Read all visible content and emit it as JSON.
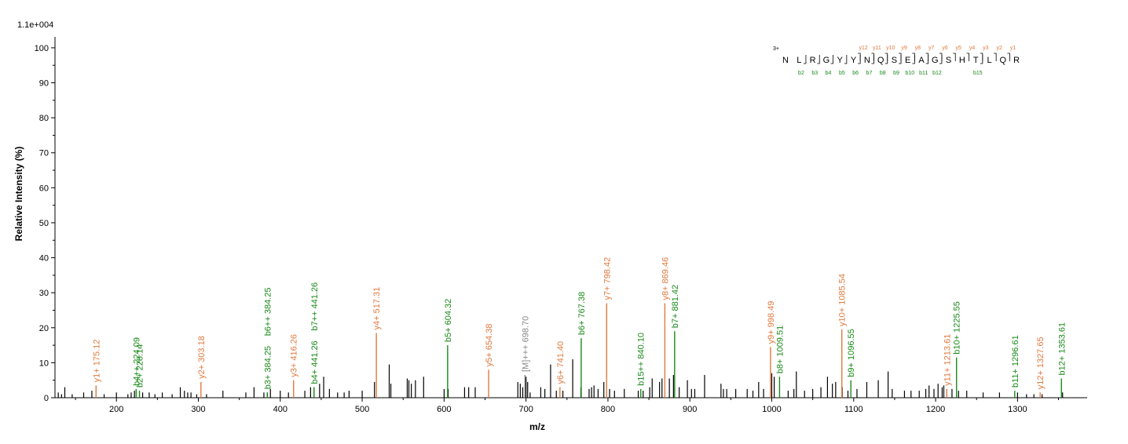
{
  "chart_data": {
    "type": "bar",
    "ylabel": "Relative   Intensity (%)",
    "xlabel": "m/z",
    "scale_label": "1.1e+004",
    "xlim": [
      125,
      1385
    ],
    "ylim": [
      0,
      102
    ],
    "xticks": [
      200,
      300,
      400,
      500,
      600,
      700,
      800,
      900,
      1000,
      1100,
      1200,
      1300
    ],
    "yticks": [
      0,
      10,
      20,
      30,
      40,
      50,
      60,
      70,
      80,
      90,
      100
    ],
    "colors": {
      "y": "#e07a40",
      "b": "#1a8a1a",
      "precursor": "#888888",
      "unassigned": "#000000"
    },
    "annotated_peaks": [
      {
        "mz": 175.12,
        "intensity": 3.5,
        "ion": "y",
        "label": "y1+ 175.12"
      },
      {
        "mz": 224.09,
        "intensity": 2.5,
        "ion": "b",
        "label": "b4++ 224.09"
      },
      {
        "mz": 228.14,
        "intensity": 2.0,
        "ion": "b",
        "label": "b2+ 228.14"
      },
      {
        "mz": 303.18,
        "intensity": 4.5,
        "ion": "y",
        "label": "y2+ 303.18"
      },
      {
        "mz": 384.25,
        "intensity": 1.5,
        "ion": "b",
        "label": "b3+ 384.25"
      },
      {
        "mz": 384.25,
        "intensity": 1.5,
        "ion": "b",
        "label": "b6++ 384.25"
      },
      {
        "mz": 416.26,
        "intensity": 5.0,
        "ion": "y",
        "label": "y3+ 416.26"
      },
      {
        "mz": 441.26,
        "intensity": 3.0,
        "ion": "b",
        "label": "b4+ 441.26"
      },
      {
        "mz": 441.26,
        "intensity": 3.0,
        "ion": "b",
        "label": "b7++ 441.26"
      },
      {
        "mz": 517.31,
        "intensity": 18.5,
        "ion": "y",
        "label": "y4+ 517.31"
      },
      {
        "mz": 604.32,
        "intensity": 15.0,
        "ion": "b",
        "label": "b5+ 604.32"
      },
      {
        "mz": 654.38,
        "intensity": 8.0,
        "ion": "y",
        "label": "y5+ 654.38"
      },
      {
        "mz": 698.7,
        "intensity": 6.5,
        "ion": "precursor",
        "label": "[M]+++ 698.70"
      },
      {
        "mz": 741.4,
        "intensity": 3.0,
        "ion": "y",
        "label": "y6+ 741.40"
      },
      {
        "mz": 767.38,
        "intensity": 17.0,
        "ion": "b",
        "label": "b6+ 767.38"
      },
      {
        "mz": 798.42,
        "intensity": 27.0,
        "ion": "y",
        "label": "y7+ 798.42"
      },
      {
        "mz": 840.1,
        "intensity": 2.5,
        "ion": "b",
        "label": "b15++ 840.10"
      },
      {
        "mz": 869.46,
        "intensity": 27.0,
        "ion": "y",
        "label": "y8+ 869.46"
      },
      {
        "mz": 881.42,
        "intensity": 19.0,
        "ion": "b",
        "label": "b7+ 881.42"
      },
      {
        "mz": 998.49,
        "intensity": 14.5,
        "ion": "y",
        "label": "y9+ 998.49"
      },
      {
        "mz": 1009.51,
        "intensity": 6.0,
        "ion": "b",
        "label": "b8+ 1009.51"
      },
      {
        "mz": 1085.54,
        "intensity": 19.5,
        "ion": "y",
        "label": "y10+ 1085.54"
      },
      {
        "mz": 1096.55,
        "intensity": 5.0,
        "ion": "b",
        "label": "b9+ 1096.55"
      },
      {
        "mz": 1213.61,
        "intensity": 2.5,
        "ion": "y",
        "label": "y11+ 1213.61"
      },
      {
        "mz": 1225.55,
        "intensity": 11.5,
        "ion": "b",
        "label": "b10+ 1225.55"
      },
      {
        "mz": 1296.61,
        "intensity": 2.0,
        "ion": "b",
        "label": "b11+ 1296.61"
      },
      {
        "mz": 1327.65,
        "intensity": 1.5,
        "ion": "y",
        "label": "y12+ 1327.65"
      },
      {
        "mz": 1353.61,
        "intensity": 5.5,
        "ion": "b",
        "label": "b12+ 1353.61"
      }
    ],
    "unassigned_peaks": [
      [
        129,
        1.5
      ],
      [
        133,
        1
      ],
      [
        137,
        3
      ],
      [
        146,
        1
      ],
      [
        160,
        1.5
      ],
      [
        170,
        2
      ],
      [
        185,
        1
      ],
      [
        200,
        1.5
      ],
      [
        214,
        1
      ],
      [
        218,
        1.5
      ],
      [
        222,
        2
      ],
      [
        232,
        1.5
      ],
      [
        240,
        1.5
      ],
      [
        247,
        1
      ],
      [
        256,
        1.5
      ],
      [
        268,
        1
      ],
      [
        278,
        3
      ],
      [
        283,
        2
      ],
      [
        287,
        1.5
      ],
      [
        291,
        1.5
      ],
      [
        298,
        1
      ],
      [
        310,
        1
      ],
      [
        330,
        2
      ],
      [
        358,
        1.5
      ],
      [
        368,
        3
      ],
      [
        380,
        1.5
      ],
      [
        388,
        2.5
      ],
      [
        400,
        2
      ],
      [
        410,
        1.5
      ],
      [
        430,
        2
      ],
      [
        437,
        3
      ],
      [
        448,
        4
      ],
      [
        453,
        6
      ],
      [
        460,
        2.5
      ],
      [
        470,
        1.5
      ],
      [
        478,
        1.5
      ],
      [
        484,
        2
      ],
      [
        500,
        2
      ],
      [
        515,
        4.5
      ],
      [
        533,
        9.5
      ],
      [
        535,
        4
      ],
      [
        555,
        5.5
      ],
      [
        557,
        5
      ],
      [
        560,
        4
      ],
      [
        565,
        5
      ],
      [
        575,
        6
      ],
      [
        600,
        2.5
      ],
      [
        605,
        2.5
      ],
      [
        625,
        3
      ],
      [
        630,
        3
      ],
      [
        638,
        3
      ],
      [
        690,
        4.5
      ],
      [
        693,
        4
      ],
      [
        696,
        3
      ],
      [
        700,
        6
      ],
      [
        702,
        4.5
      ],
      [
        705,
        1.5
      ],
      [
        718,
        3
      ],
      [
        723,
        2.5
      ],
      [
        730,
        9.5
      ],
      [
        737,
        2
      ],
      [
        745,
        2
      ],
      [
        757,
        11
      ],
      [
        767,
        3
      ],
      [
        777,
        2.5
      ],
      [
        780,
        3
      ],
      [
        783,
        3.5
      ],
      [
        788,
        2.5
      ],
      [
        795,
        4.5
      ],
      [
        802,
        2.5
      ],
      [
        808,
        2
      ],
      [
        820,
        2.5
      ],
      [
        837,
        2
      ],
      [
        843,
        2
      ],
      [
        851,
        3
      ],
      [
        854,
        5.5
      ],
      [
        863,
        4.5
      ],
      [
        866,
        5.5
      ],
      [
        875,
        5.5
      ],
      [
        880,
        6.5
      ],
      [
        887,
        3
      ],
      [
        897,
        5
      ],
      [
        902,
        2.5
      ],
      [
        906,
        2.5
      ],
      [
        918,
        6.5
      ],
      [
        938,
        4
      ],
      [
        941,
        2.5
      ],
      [
        945,
        2.5
      ],
      [
        956,
        2.5
      ],
      [
        970,
        2.5
      ],
      [
        977,
        2
      ],
      [
        984,
        4.5
      ],
      [
        990,
        2.5
      ],
      [
        1000,
        7
      ],
      [
        1003,
        6
      ],
      [
        1020,
        2
      ],
      [
        1027,
        2.5
      ],
      [
        1030,
        7.5
      ],
      [
        1040,
        2
      ],
      [
        1050,
        2.5
      ],
      [
        1060,
        3
      ],
      [
        1068,
        6
      ],
      [
        1074,
        4
      ],
      [
        1078,
        4.5
      ],
      [
        1086,
        3
      ],
      [
        1093,
        2
      ],
      [
        1104,
        2.5
      ],
      [
        1116,
        4.5
      ],
      [
        1130,
        5
      ],
      [
        1142,
        7.5
      ],
      [
        1147,
        2.5
      ],
      [
        1162,
        2
      ],
      [
        1170,
        2
      ],
      [
        1180,
        2
      ],
      [
        1188,
        2.5
      ],
      [
        1192,
        3.5
      ],
      [
        1198,
        2.5
      ],
      [
        1203,
        4
      ],
      [
        1208,
        3
      ],
      [
        1210,
        3.5
      ],
      [
        1220,
        2.5
      ],
      [
        1228,
        2
      ],
      [
        1238,
        2
      ],
      [
        1258,
        1.5
      ],
      [
        1278,
        1.5
      ],
      [
        1300,
        1.5
      ],
      [
        1311,
        1
      ],
      [
        1320,
        1
      ],
      [
        1330,
        1
      ],
      [
        1355,
        1.5
      ]
    ],
    "sequence": {
      "charge": "3+",
      "residues": [
        "N",
        "L",
        "R",
        "G",
        "Y",
        "Y",
        "N",
        "Q",
        "S",
        "E",
        "A",
        "G",
        "S",
        "H",
        "T",
        "L",
        "Q",
        "R"
      ],
      "y_ions": [
        {
          "label": "y12",
          "after": 6
        },
        {
          "label": "y11",
          "after": 7
        },
        {
          "label": "y10",
          "after": 8
        },
        {
          "label": "y9",
          "after": 9
        },
        {
          "label": "y8",
          "after": 10
        },
        {
          "label": "y7",
          "after": 11
        },
        {
          "label": "y6",
          "after": 12
        },
        {
          "label": "y5",
          "after": 13
        },
        {
          "label": "y4",
          "after": 14
        },
        {
          "label": "y3",
          "after": 15
        },
        {
          "label": "y2",
          "after": 16
        },
        {
          "label": "y1",
          "after": 17
        }
      ],
      "b_ions": [
        {
          "label": "b2",
          "after": 2
        },
        {
          "label": "b3",
          "after": 3
        },
        {
          "label": "b4",
          "after": 4
        },
        {
          "label": "b5",
          "after": 5
        },
        {
          "label": "b6",
          "after": 6
        },
        {
          "label": "b7",
          "after": 7
        },
        {
          "label": "b8",
          "after": 8
        },
        {
          "label": "b9",
          "after": 9
        },
        {
          "label": "b10",
          "after": 10
        },
        {
          "label": "b11",
          "after": 11
        },
        {
          "label": "b12",
          "after": 12
        },
        {
          "label": "b15",
          "after": 15
        }
      ]
    }
  }
}
